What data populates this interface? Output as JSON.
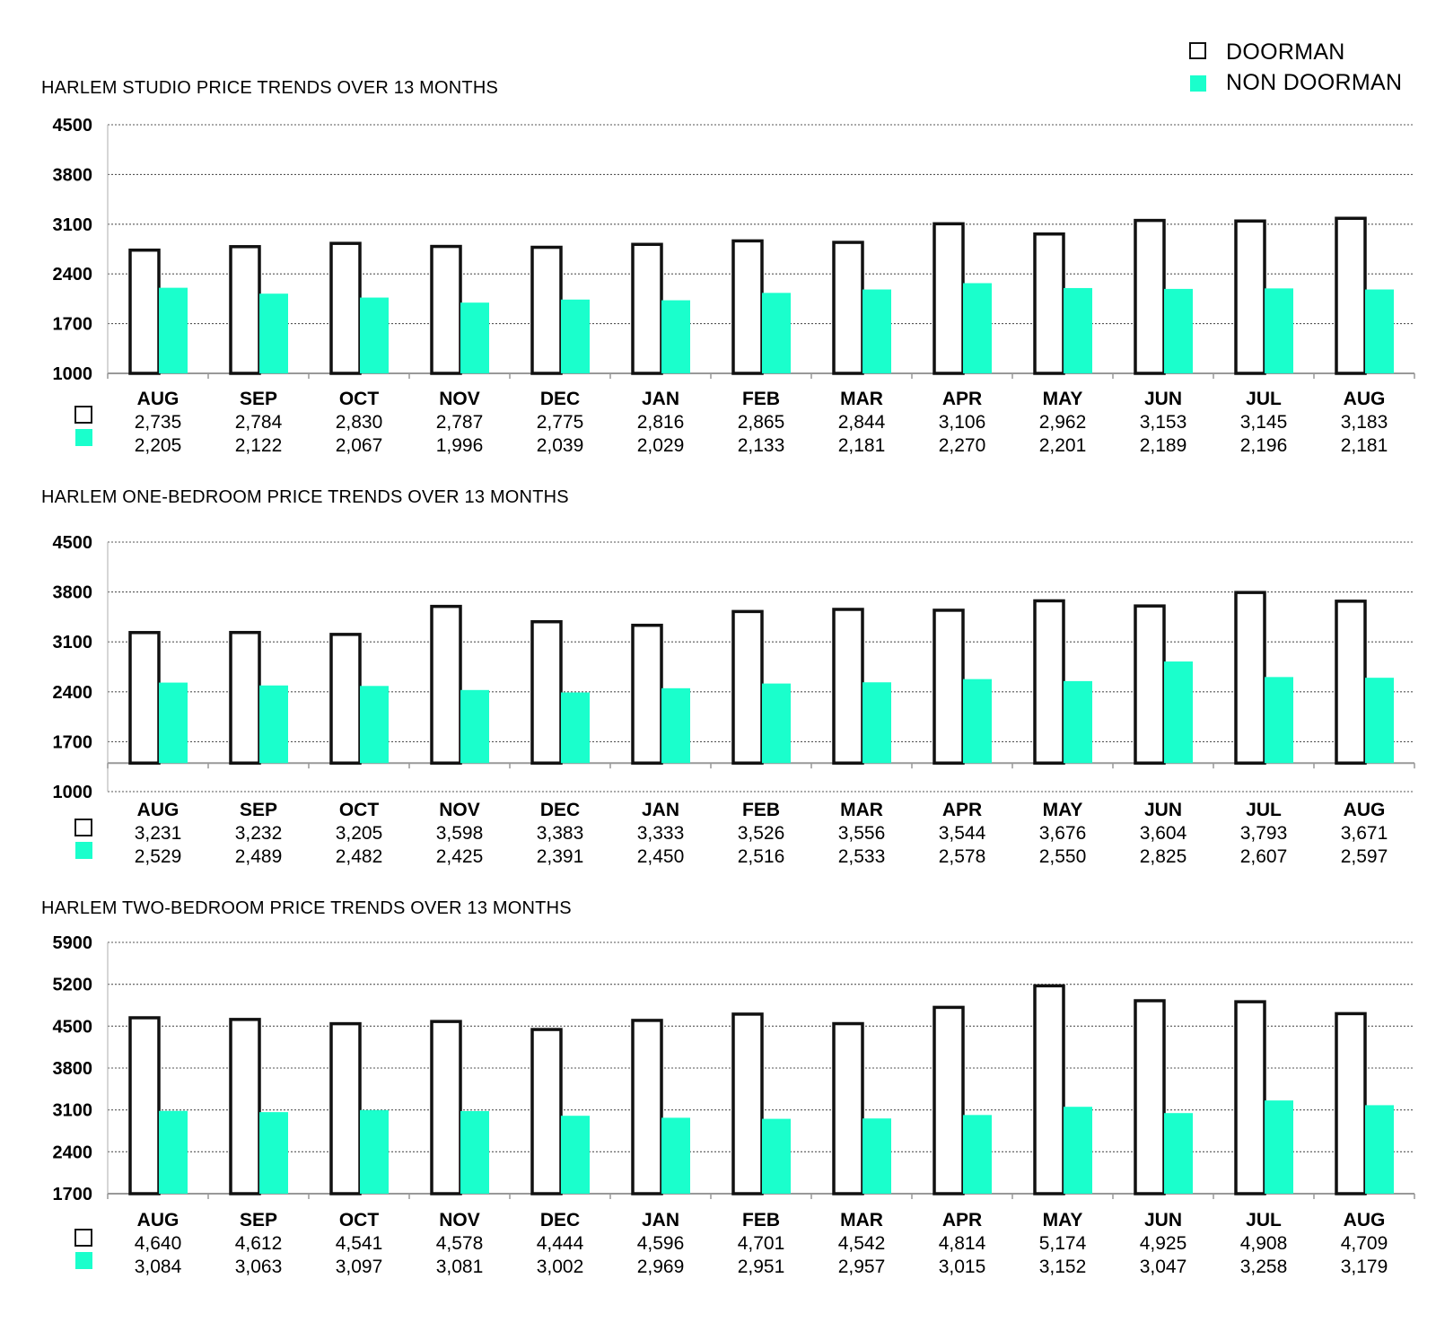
{
  "legend": {
    "series": [
      {
        "name": "DOORMAN",
        "fill": "#ffffff",
        "stroke": "#111111"
      },
      {
        "name": "NON DOORMAN",
        "fill": "#1affcc",
        "stroke": "#1affcc"
      }
    ]
  },
  "chart_data": [
    {
      "type": "bar",
      "title": "HARLEM STUDIO PRICE TRENDS OVER 13 MONTHS",
      "categories": [
        "AUG",
        "SEP",
        "OCT",
        "NOV",
        "DEC",
        "JAN",
        "FEB",
        "MAR",
        "APR",
        "MAY",
        "JUN",
        "JUL",
        "AUG"
      ],
      "ylim": [
        1000,
        4500
      ],
      "yticks": [
        "4500",
        "3800",
        "3100",
        "2400",
        "1700",
        "1000"
      ],
      "yticks_values": [
        4500,
        3800,
        3100,
        2400,
        1700,
        1000
      ],
      "grid": true,
      "baseline": 1000,
      "series": [
        {
          "name": "DOORMAN",
          "values": [
            2735,
            2784,
            2830,
            2787,
            2775,
            2816,
            2865,
            2844,
            3106,
            2962,
            3153,
            3145,
            3183
          ],
          "labels": [
            "2,735",
            "2,784",
            "2,830",
            "2,787",
            "2,775",
            "2,816",
            "2,865",
            "2,844",
            "3,106",
            "2,962",
            "3,153",
            "3,145",
            "3,183"
          ]
        },
        {
          "name": "NON DOORMAN",
          "values": [
            2205,
            2122,
            2067,
            1996,
            2039,
            2029,
            2133,
            2181,
            2270,
            2201,
            2189,
            2196,
            2181
          ],
          "labels": [
            "2,205",
            "2,122",
            "2,067",
            "1,996",
            "2,039",
            "2,029",
            "2,133",
            "2,181",
            "2,270",
            "2,201",
            "2,189",
            "2,196",
            "2,181"
          ]
        }
      ]
    },
    {
      "type": "bar",
      "title": "HARLEM ONE-BEDROOM PRICE TRENDS OVER 13 MONTHS",
      "categories": [
        "AUG",
        "SEP",
        "OCT",
        "NOV",
        "DEC",
        "JAN",
        "FEB",
        "MAR",
        "APR",
        "MAY",
        "JUN",
        "JUL",
        "AUG"
      ],
      "ylim": [
        1000,
        4500
      ],
      "yticks": [
        "4500",
        "3800",
        "3100",
        "2400",
        "1700",
        "1000"
      ],
      "yticks_values": [
        4500,
        3800,
        3100,
        2400,
        1700,
        1000
      ],
      "grid": true,
      "baseline": 1400,
      "series": [
        {
          "name": "DOORMAN",
          "values": [
            3231,
            3232,
            3205,
            3598,
            3383,
            3333,
            3526,
            3556,
            3544,
            3676,
            3604,
            3793,
            3671
          ],
          "labels": [
            "3,231",
            "3,232",
            "3,205",
            "3,598",
            "3,383",
            "3,333",
            "3,526",
            "3,556",
            "3,544",
            "3,676",
            "3,604",
            "3,793",
            "3,671"
          ]
        },
        {
          "name": "NON DOORMAN",
          "values": [
            2529,
            2489,
            2482,
            2425,
            2391,
            2450,
            2516,
            2533,
            2578,
            2550,
            2825,
            2607,
            2597
          ],
          "labels": [
            "2,529",
            "2,489",
            "2,482",
            "2,425",
            "2,391",
            "2,450",
            "2,516",
            "2,533",
            "2,578",
            "2,550",
            "2,825",
            "2,607",
            "2,597"
          ]
        }
      ]
    },
    {
      "type": "bar",
      "title": "HARLEM TWO-BEDROOM PRICE TRENDS OVER 13 MONTHS",
      "categories": [
        "AUG",
        "SEP",
        "OCT",
        "NOV",
        "DEC",
        "JAN",
        "FEB",
        "MAR",
        "APR",
        "MAY",
        "JUN",
        "JUL",
        "AUG"
      ],
      "ylim": [
        1700,
        5900
      ],
      "yticks": [
        "5900",
        "5200",
        "4500",
        "3800",
        "3100",
        "2400",
        "1700"
      ],
      "yticks_values": [
        5900,
        5200,
        4500,
        3800,
        3100,
        2400,
        1700
      ],
      "grid": true,
      "baseline": 1700,
      "series": [
        {
          "name": "DOORMAN",
          "values": [
            4640,
            4612,
            4541,
            4578,
            4444,
            4596,
            4701,
            4542,
            4814,
            5174,
            4925,
            4908,
            4709
          ],
          "labels": [
            "4,640",
            "4,612",
            "4,541",
            "4,578",
            "4,444",
            "4,596",
            "4,701",
            "4,542",
            "4,814",
            "5,174",
            "4,925",
            "4,908",
            "4,709"
          ]
        },
        {
          "name": "NON DOORMAN",
          "values": [
            3084,
            3063,
            3097,
            3081,
            3002,
            2969,
            2951,
            2957,
            3015,
            3152,
            3047,
            3258,
            3179
          ],
          "labels": [
            "3,084",
            "3,063",
            "3,097",
            "3,081",
            "3,002",
            "2,969",
            "2,951",
            "2,957",
            "3,015",
            "3,152",
            "3,047",
            "3,258",
            "3,179"
          ]
        }
      ]
    }
  ]
}
